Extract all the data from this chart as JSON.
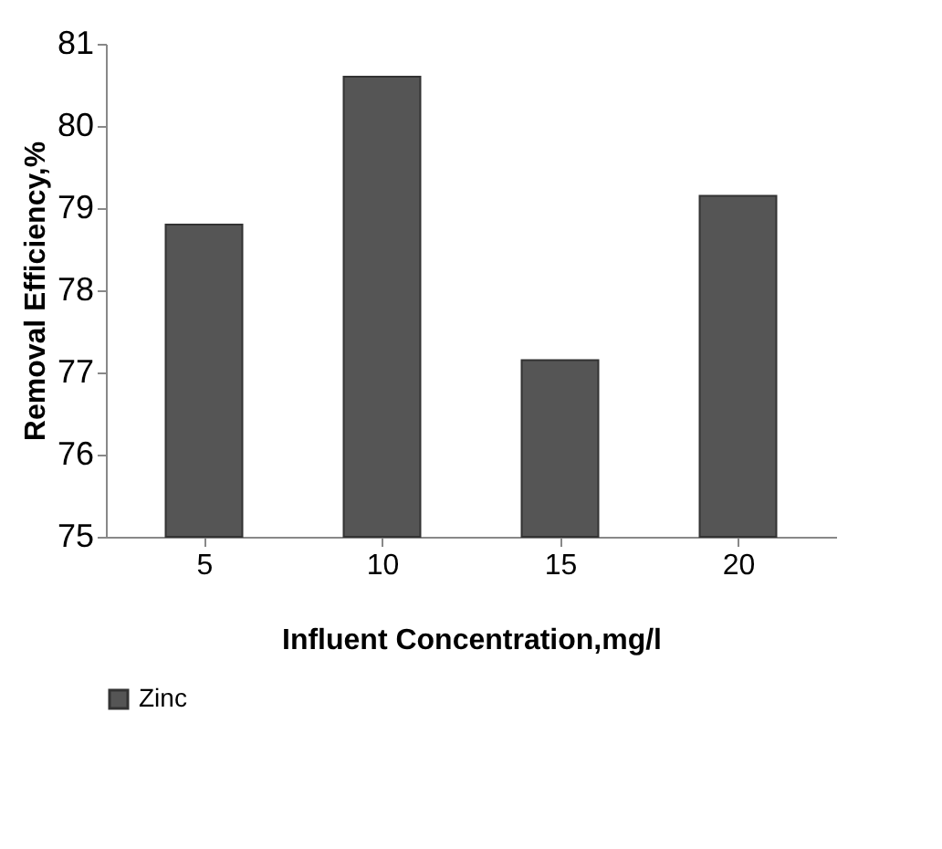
{
  "chart_data": {
    "type": "bar",
    "xlabel": "Influent Concentration,mg/l",
    "ylabel": "Removal Efficiency,%",
    "categories": [
      "5",
      "10",
      "15",
      "20"
    ],
    "series": [
      {
        "name": "Zinc",
        "color": "#555555",
        "values": [
          78.8,
          80.6,
          77.15,
          79.15
        ]
      }
    ],
    "ylim": [
      75,
      81
    ],
    "yticks": [
      75,
      76,
      77,
      78,
      79,
      80,
      81
    ],
    "grid": false,
    "legend": "bottom"
  }
}
